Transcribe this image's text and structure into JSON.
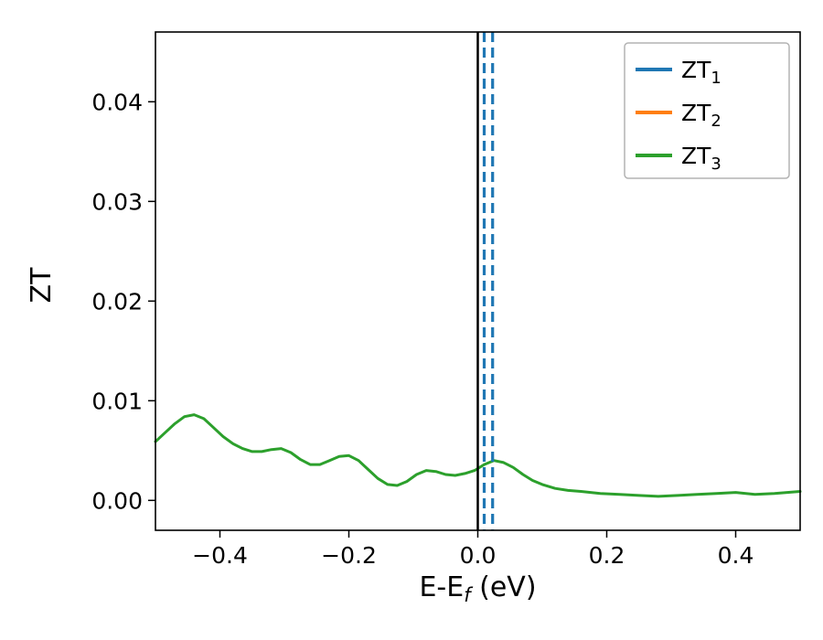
{
  "figure": {
    "background": "#ffffff"
  },
  "chart_data": {
    "type": "line",
    "title": "",
    "xlabel": "E-E_f (eV)",
    "xlabel_parts": {
      "pre": "E-E",
      "sub": "f",
      "post": " (eV)"
    },
    "ylabel": "ZT",
    "xlim": [
      -0.5,
      0.5
    ],
    "ylim": [
      -0.003,
      0.047
    ],
    "xticks": [
      -0.4,
      -0.2,
      0.0,
      0.2,
      0.4
    ],
    "xtick_labels": [
      "−0.4",
      "−0.2",
      "0.0",
      "0.2",
      "0.4"
    ],
    "yticks": [
      0.0,
      0.01,
      0.02,
      0.03,
      0.04
    ],
    "ytick_labels": [
      "0.00",
      "0.01",
      "0.02",
      "0.03",
      "0.04"
    ],
    "grid": false,
    "legend": {
      "position": "upper right",
      "entries": [
        {
          "label": "ZT",
          "sub": "1",
          "color": "#1f77b4"
        },
        {
          "label": "ZT",
          "sub": "2",
          "color": "#ff7f0e"
        },
        {
          "label": "ZT",
          "sub": "3",
          "color": "#2ca02c"
        }
      ]
    },
    "vlines": [
      {
        "x": 0.0,
        "color": "#000000",
        "style": "solid",
        "name": "fermi-level-line"
      },
      {
        "x": 0.01,
        "color": "#1f77b4",
        "style": "dashed",
        "name": "zt1-vertical-dashed-line"
      },
      {
        "x": 0.023,
        "color": "#1f77b4",
        "style": "dashed",
        "name": "zt2-vertical-dashed-line"
      }
    ],
    "series": [
      {
        "name": "ZT3",
        "color": "#2ca02c",
        "linewidth": 3,
        "points": [
          [
            -0.5,
            0.0059
          ],
          [
            -0.485,
            0.0068
          ],
          [
            -0.47,
            0.0077
          ],
          [
            -0.455,
            0.0084
          ],
          [
            -0.44,
            0.0086
          ],
          [
            -0.425,
            0.0082
          ],
          [
            -0.41,
            0.0073
          ],
          [
            -0.395,
            0.0064
          ],
          [
            -0.38,
            0.0057
          ],
          [
            -0.365,
            0.0052
          ],
          [
            -0.35,
            0.0049
          ],
          [
            -0.335,
            0.0049
          ],
          [
            -0.32,
            0.0051
          ],
          [
            -0.305,
            0.0052
          ],
          [
            -0.29,
            0.0048
          ],
          [
            -0.275,
            0.0041
          ],
          [
            -0.26,
            0.0036
          ],
          [
            -0.245,
            0.0036
          ],
          [
            -0.23,
            0.004
          ],
          [
            -0.215,
            0.0044
          ],
          [
            -0.2,
            0.0045
          ],
          [
            -0.185,
            0.004
          ],
          [
            -0.17,
            0.0031
          ],
          [
            -0.155,
            0.0022
          ],
          [
            -0.14,
            0.0016
          ],
          [
            -0.125,
            0.0015
          ],
          [
            -0.11,
            0.0019
          ],
          [
            -0.095,
            0.0026
          ],
          [
            -0.08,
            0.003
          ],
          [
            -0.065,
            0.0029
          ],
          [
            -0.05,
            0.0026
          ],
          [
            -0.035,
            0.0025
          ],
          [
            -0.02,
            0.0027
          ],
          [
            -0.005,
            0.003
          ],
          [
            0.01,
            0.0036
          ],
          [
            0.025,
            0.004
          ],
          [
            0.04,
            0.0038
          ],
          [
            0.055,
            0.0033
          ],
          [
            0.07,
            0.0026
          ],
          [
            0.085,
            0.002
          ],
          [
            0.1,
            0.0016
          ],
          [
            0.12,
            0.0012
          ],
          [
            0.14,
            0.001
          ],
          [
            0.16,
            0.0009
          ],
          [
            0.19,
            0.0007
          ],
          [
            0.22,
            0.0006
          ],
          [
            0.25,
            0.0005
          ],
          [
            0.28,
            0.0004
          ],
          [
            0.31,
            0.0005
          ],
          [
            0.34,
            0.0006
          ],
          [
            0.37,
            0.0007
          ],
          [
            0.4,
            0.0008
          ],
          [
            0.43,
            0.0006
          ],
          [
            0.46,
            0.0007
          ],
          [
            0.48,
            0.0008
          ],
          [
            0.5,
            0.0009
          ]
        ]
      }
    ]
  }
}
